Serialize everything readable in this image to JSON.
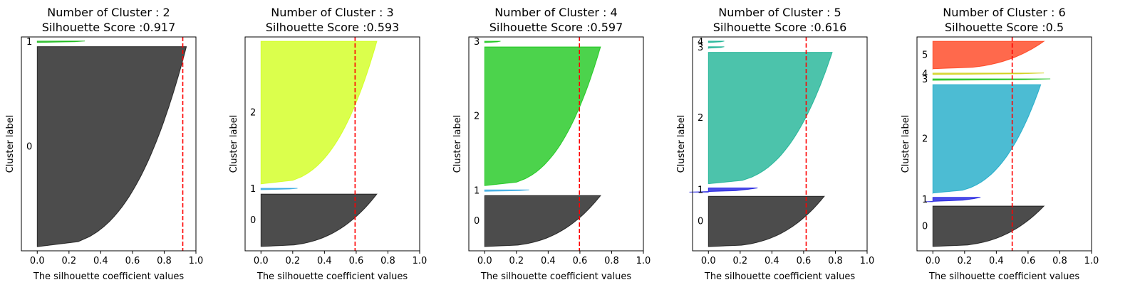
{
  "chart_data": [
    {
      "type": "area",
      "title": "Number of Cluster : 2",
      "subtitle": "Silhouette Score :0.917",
      "xlabel": "The silhouette coefficient values",
      "ylabel": "Cluster label",
      "xlim": [
        -0.1,
        1.0
      ],
      "xticks": [
        "0.0",
        "0.2",
        "0.4",
        "0.6",
        "0.8",
        "1.0"
      ],
      "average_score": 0.917,
      "clusters": [
        {
          "label": "0",
          "color": "#000000",
          "size": 145,
          "max_value": 0.94,
          "min_value": 0.0
        },
        {
          "label": "1",
          "color": "#00b000",
          "size": 1,
          "max_value": 0.3,
          "min_value": 0.0
        }
      ]
    },
    {
      "type": "area",
      "title": "Number of Cluster : 3",
      "subtitle": "Silhouette Score :0.593",
      "xlabel": "The silhouette coefficient values",
      "ylabel": "Cluster label",
      "xlim": [
        -0.1,
        1.0
      ],
      "xticks": [
        "0.0",
        "0.2",
        "0.4",
        "0.6",
        "0.8",
        "1.0"
      ],
      "average_score": 0.593,
      "clusters": [
        {
          "label": "0",
          "color": "#000000",
          "size": 36,
          "max_value": 0.73,
          "min_value": 0.0
        },
        {
          "label": "1",
          "color": "#1f9fdf",
          "size": 1,
          "max_value": 0.23,
          "min_value": 0.0
        },
        {
          "label": "2",
          "color": "#ccff00",
          "size": 98,
          "max_value": 0.73,
          "min_value": 0.0
        }
      ]
    },
    {
      "type": "area",
      "title": "Number of Cluster : 4",
      "subtitle": "Silhouette Score :0.597",
      "xlabel": "The silhouette coefficient values",
      "ylabel": "Cluster label",
      "xlim": [
        -0.1,
        1.0
      ],
      "xticks": [
        "0.0",
        "0.2",
        "0.4",
        "0.6",
        "0.8",
        "1.0"
      ],
      "average_score": 0.597,
      "clusters": [
        {
          "label": "0",
          "color": "#000000",
          "size": 36,
          "max_value": 0.73,
          "min_value": 0.0
        },
        {
          "label": "1",
          "color": "#1f9fdf",
          "size": 1,
          "max_value": 0.28,
          "min_value": 0.0
        },
        {
          "label": "2",
          "color": "#00c000",
          "size": 98,
          "max_value": 0.73,
          "min_value": 0.0
        },
        {
          "label": "3",
          "color": "#00c000",
          "size": 1,
          "max_value": 0.1,
          "min_value": 0.0
        }
      ]
    },
    {
      "type": "area",
      "title": "Number of Cluster : 5",
      "subtitle": "Silhouette Score :0.616",
      "xlabel": "The silhouette coefficient values",
      "ylabel": "Cluster label",
      "xlim": [
        -0.1,
        1.0
      ],
      "xticks": [
        "0.0",
        "0.2",
        "0.4",
        "0.6",
        "0.8",
        "1.0"
      ],
      "average_score": 0.616,
      "clusters": [
        {
          "label": "0",
          "color": "#000000",
          "size": 36,
          "max_value": 0.73,
          "min_value": 0.0
        },
        {
          "label": "1",
          "color": "#0000dd",
          "size": 3,
          "max_value": 0.31,
          "min_value": -0.12
        },
        {
          "label": "2",
          "color": "#00aa88",
          "size": 94,
          "max_value": 0.78,
          "min_value": 0.0
        },
        {
          "label": "3",
          "color": "#00aa88",
          "size": 1,
          "max_value": 0.1,
          "min_value": 0.0
        },
        {
          "label": "4",
          "color": "#00aa88",
          "size": 1,
          "max_value": 0.1,
          "min_value": 0.0
        }
      ]
    },
    {
      "type": "area",
      "title": "Number of Cluster : 6",
      "subtitle": "Silhouette Score :0.5",
      "xlabel": "The silhouette coefficient values",
      "ylabel": "Cluster label",
      "xlim": [
        -0.1,
        1.0
      ],
      "xticks": [
        "0.0",
        "0.2",
        "0.4",
        "0.6",
        "0.8",
        "1.0"
      ],
      "average_score": 0.5,
      "clusters": [
        {
          "label": "0",
          "color": "#000000",
          "size": 28,
          "max_value": 0.7,
          "min_value": 0.0
        },
        {
          "label": "1",
          "color": "#0000dd",
          "size": 3,
          "max_value": 0.3,
          "min_value": -0.05
        },
        {
          "label": "2",
          "color": "#00a0c0",
          "size": 75,
          "max_value": 0.68,
          "min_value": 0.0
        },
        {
          "label": "3",
          "color": "#00bb00",
          "size": 1,
          "max_value": 0.74,
          "min_value": 0.0
        },
        {
          "label": "4",
          "color": "#cccc00",
          "size": 1,
          "max_value": 0.7,
          "min_value": 0.0
        },
        {
          "label": "5",
          "color": "#ff2a00",
          "size": 19,
          "max_value": 0.7,
          "min_value": 0.0
        }
      ]
    }
  ]
}
